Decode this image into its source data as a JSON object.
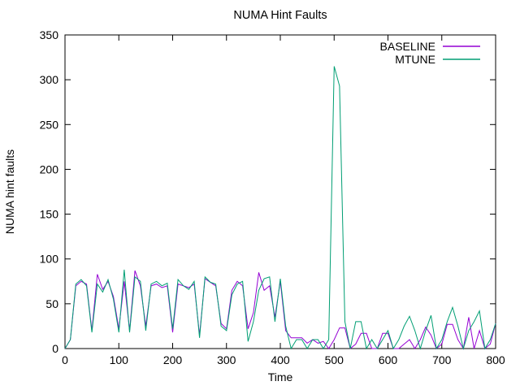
{
  "window": {
    "background": "#ffffff"
  },
  "chart_data": {
    "type": "line",
    "title": "NUMA Hint Faults",
    "xlabel": "Time",
    "ylabel": "NUMA hint faults",
    "xlim": [
      0,
      800
    ],
    "ylim": [
      0,
      350
    ],
    "xticks": [
      0,
      100,
      200,
      300,
      400,
      500,
      600,
      700,
      800
    ],
    "yticks": [
      0,
      50,
      100,
      150,
      200,
      250,
      300,
      350
    ],
    "grid": false,
    "legend_position": "top-right-inside",
    "axis_color": "#000000",
    "x": [
      0,
      10,
      20,
      30,
      40,
      50,
      60,
      70,
      80,
      90,
      100,
      110,
      120,
      130,
      140,
      150,
      160,
      170,
      180,
      190,
      200,
      210,
      220,
      230,
      240,
      250,
      260,
      270,
      280,
      290,
      300,
      310,
      320,
      330,
      340,
      350,
      360,
      370,
      380,
      390,
      400,
      410,
      420,
      430,
      440,
      450,
      460,
      470,
      480,
      490,
      500,
      510,
      520,
      530,
      540,
      550,
      560,
      570,
      580,
      590,
      600,
      610,
      620,
      630,
      640,
      650,
      660,
      670,
      680,
      690,
      700,
      710,
      720,
      730,
      740,
      750,
      760,
      770,
      780,
      790,
      800
    ],
    "series": [
      {
        "name": "BASELINE",
        "color": "#9400d3",
        "values": [
          0,
          10,
          70,
          75,
          72,
          20,
          83,
          66,
          75,
          58,
          22,
          75,
          20,
          87,
          70,
          25,
          70,
          72,
          68,
          70,
          18,
          72,
          70,
          68,
          72,
          15,
          78,
          74,
          70,
          28,
          22,
          65,
          75,
          70,
          22,
          40,
          85,
          65,
          70,
          35,
          75,
          20,
          12,
          12,
          12,
          6,
          10,
          6,
          8,
          0,
          10,
          23,
          23,
          0,
          5,
          17,
          17,
          0,
          0,
          17,
          17,
          0,
          0,
          5,
          10,
          0,
          10,
          24,
          15,
          0,
          5,
          27,
          27,
          10,
          0,
          35,
          0,
          20,
          0,
          5,
          28
        ]
      },
      {
        "name": "MTUNE",
        "color": "#009e73",
        "values": [
          0,
          10,
          72,
          77,
          70,
          18,
          72,
          63,
          77,
          55,
          18,
          88,
          18,
          80,
          75,
          20,
          72,
          75,
          70,
          73,
          22,
          77,
          70,
          66,
          75,
          12,
          80,
          74,
          72,
          25,
          20,
          60,
          72,
          75,
          8,
          30,
          65,
          78,
          80,
          30,
          78,
          25,
          0,
          10,
          10,
          0,
          10,
          10,
          0,
          10,
          315,
          293,
          30,
          0,
          30,
          30,
          0,
          10,
          0,
          10,
          20,
          0,
          10,
          25,
          36,
          20,
          0,
          20,
          37,
          0,
          10,
          30,
          46,
          25,
          0,
          20,
          30,
          42,
          0,
          10,
          28
        ]
      }
    ]
  }
}
